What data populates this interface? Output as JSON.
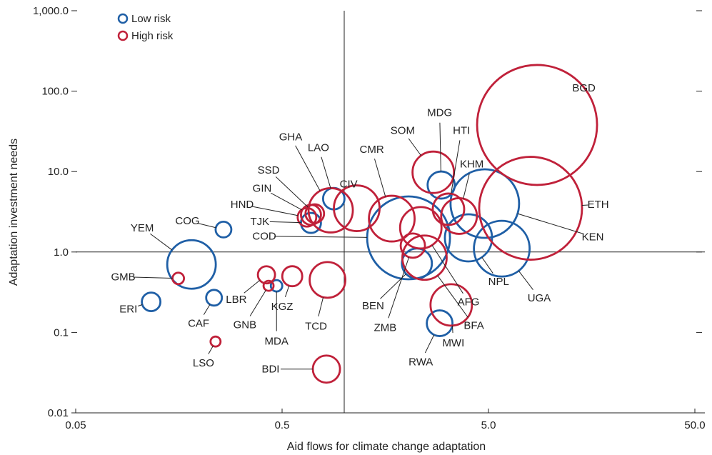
{
  "chart_data": {
    "type": "scatter",
    "subtype": "bubble",
    "xlabel": "Aid flows for climate change adaptation",
    "ylabel": "Adaptation investment needs",
    "x_scale": "log",
    "y_scale": "log",
    "xlim": [
      0.05,
      50
    ],
    "ylim": [
      0.01,
      1000
    ],
    "x_ticks": [
      0.05,
      0.5,
      5,
      50
    ],
    "x_tick_labels": [
      "0.05",
      "0.5",
      "5.0",
      "50.0"
    ],
    "y_ticks": [
      0.01,
      0.1,
      1,
      10,
      100,
      1000
    ],
    "y_tick_labels": [
      "0.01",
      "0.1",
      "1.0",
      "10.0",
      "100.0",
      "1,000.0"
    ],
    "reference_lines": {
      "x": 1.0,
      "y": 1.0
    },
    "legend": {
      "placement": "top-left",
      "entries": [
        {
          "label": "Low risk",
          "color": "#1f5fa6"
        },
        {
          "label": "High risk",
          "color": "#c0213a"
        }
      ]
    },
    "colors": {
      "Low risk": "#1f5fa6",
      "High risk": "#c0213a"
    },
    "series": [
      {
        "name": "Low risk",
        "points": [
          {
            "label": "ERI",
            "x": 0.116,
            "y": 0.24,
            "size": 13
          },
          {
            "label": "YEM",
            "x": 0.182,
            "y": 0.7,
            "size": 34
          },
          {
            "label": "CAF",
            "x": 0.234,
            "y": 0.27,
            "size": 11
          },
          {
            "label": "COG",
            "x": 0.26,
            "y": 1.9,
            "size": 11
          },
          {
            "label": "MDA",
            "x": 0.47,
            "y": 0.38,
            "size": 8
          },
          {
            "label": "TJK",
            "x": 0.69,
            "y": 2.3,
            "size": 14
          },
          {
            "label": "LAO",
            "x": 0.89,
            "y": 4.6,
            "size": 15
          },
          {
            "label": "COD",
            "x": 2.05,
            "y": 1.5,
            "size": 58
          },
          {
            "label": "BEN",
            "x": 2.25,
            "y": 0.72,
            "size": 21
          },
          {
            "label": "RWA",
            "x": 2.9,
            "y": 0.13,
            "size": 18
          },
          {
            "label": "MDG",
            "x": 2.95,
            "y": 6.8,
            "size": 19
          },
          {
            "label": "NPL",
            "x": 4.0,
            "y": 1.5,
            "size": 33
          },
          {
            "label": "UGA",
            "x": 5.8,
            "y": 1.1,
            "size": 39
          },
          {
            "label": "KEN",
            "x": 4.8,
            "y": 4.0,
            "size": 48
          }
        ]
      },
      {
        "name": "High risk",
        "points": [
          {
            "label": "GMB",
            "x": 0.157,
            "y": 0.47,
            "size": 8
          },
          {
            "label": "LSO",
            "x": 0.238,
            "y": 0.077,
            "size": 7
          },
          {
            "label": "LBR",
            "x": 0.42,
            "y": 0.52,
            "size": 12
          },
          {
            "label": "GNB",
            "x": 0.43,
            "y": 0.38,
            "size": 7
          },
          {
            "label": "KGZ",
            "x": 0.56,
            "y": 0.5,
            "size": 14
          },
          {
            "label": "HND",
            "x": 0.66,
            "y": 2.7,
            "size": 13
          },
          {
            "label": "GIN",
            "x": 0.69,
            "y": 2.9,
            "size": 14
          },
          {
            "label": "SSD",
            "x": 0.72,
            "y": 3.0,
            "size": 13
          },
          {
            "label": "GHA",
            "x": 0.86,
            "y": 3.3,
            "size": 31
          },
          {
            "label": "TCD",
            "x": 0.83,
            "y": 0.45,
            "size": 25
          },
          {
            "label": "BDI",
            "x": 0.82,
            "y": 0.035,
            "size": 19
          },
          {
            "label": "CIV",
            "x": 1.15,
            "y": 3.5,
            "size": 32
          },
          {
            "label": "CMR",
            "x": 1.7,
            "y": 2.6,
            "size": 32
          },
          {
            "label": "SOM",
            "x": 2.7,
            "y": 9.8,
            "size": 29
          },
          {
            "label": "HTI",
            "x": 3.2,
            "y": 3.4,
            "size": 22
          },
          {
            "label": "KHM",
            "x": 3.6,
            "y": 2.8,
            "size": 25
          },
          {
            "label": "AFG",
            "x": 2.35,
            "y": 2.0,
            "size": 29
          },
          {
            "label": "ZMB",
            "x": 2.15,
            "y": 1.2,
            "size": 17
          },
          {
            "label": "BFA",
            "x": 2.45,
            "y": 0.85,
            "size": 31
          },
          {
            "label": "MWI",
            "x": 3.3,
            "y": 0.22,
            "size": 29
          },
          {
            "label": "ETH",
            "x": 8.0,
            "y": 3.5,
            "size": 72
          },
          {
            "label": "BGD",
            "x": 8.6,
            "y": 38.0,
            "size": 84
          }
        ]
      }
    ],
    "annotations": [
      {
        "label": "BGD",
        "x": 14.5,
        "y": 110
      },
      {
        "label": "ETH",
        "x": 17.0,
        "y": 3.9
      },
      {
        "label": "KEN",
        "x": 16.0,
        "y": 1.55
      },
      {
        "label": "UGA",
        "x": 8.8,
        "y": 0.27
      },
      {
        "label": "NPL",
        "x": 5.6,
        "y": 0.43
      },
      {
        "label": "AFG",
        "x": 4.0,
        "y": 0.24
      },
      {
        "label": "BFA",
        "x": 4.25,
        "y": 0.122
      },
      {
        "label": "MWI",
        "x": 3.38,
        "y": 0.074
      },
      {
        "label": "RWA",
        "x": 2.35,
        "y": 0.043
      },
      {
        "label": "ZMB",
        "x": 1.58,
        "y": 0.115
      },
      {
        "label": "BEN",
        "x": 1.38,
        "y": 0.215
      },
      {
        "label": "COD",
        "x": 0.41,
        "y": 1.57
      },
      {
        "label": "TCD",
        "x": 0.73,
        "y": 0.12
      },
      {
        "label": "BDI",
        "x": 0.44,
        "y": 0.035
      },
      {
        "label": "KGZ",
        "x": 0.5,
        "y": 0.21
      },
      {
        "label": "MDA",
        "x": 0.47,
        "y": 0.078
      },
      {
        "label": "GNB",
        "x": 0.33,
        "y": 0.125
      },
      {
        "label": "LBR",
        "x": 0.3,
        "y": 0.258
      },
      {
        "label": "LSO",
        "x": 0.208,
        "y": 0.042
      },
      {
        "label": "CAF",
        "x": 0.197,
        "y": 0.13
      },
      {
        "label": "ERI",
        "x": 0.09,
        "y": 0.195
      },
      {
        "label": "GMB",
        "x": 0.085,
        "y": 0.49
      },
      {
        "label": "YEM",
        "x": 0.105,
        "y": 2.0
      },
      {
        "label": "COG",
        "x": 0.174,
        "y": 2.45
      },
      {
        "label": "TJK",
        "x": 0.39,
        "y": 2.4
      },
      {
        "label": "HND",
        "x": 0.32,
        "y": 3.9
      },
      {
        "label": "GIN",
        "x": 0.4,
        "y": 6.2
      },
      {
        "label": "SSD",
        "x": 0.43,
        "y": 10.5
      },
      {
        "label": "GHA",
        "x": 0.55,
        "y": 27.0
      },
      {
        "label": "LAO",
        "x": 0.75,
        "y": 20.0
      },
      {
        "label": "CIV",
        "x": 1.05,
        "y": 7.0
      },
      {
        "label": "CMR",
        "x": 1.36,
        "y": 19.0
      },
      {
        "label": "SOM",
        "x": 1.92,
        "y": 32.5
      },
      {
        "label": "MDG",
        "x": 2.9,
        "y": 54.0
      },
      {
        "label": "HTI",
        "x": 3.7,
        "y": 32.5
      },
      {
        "label": "KHM",
        "x": 4.15,
        "y": 12.5
      }
    ]
  }
}
